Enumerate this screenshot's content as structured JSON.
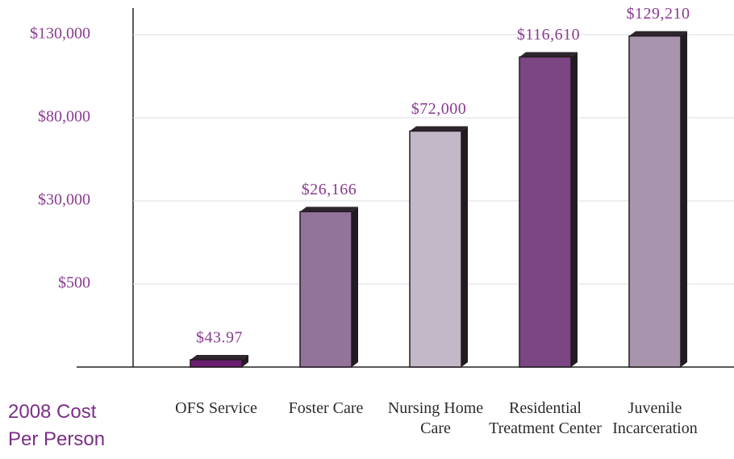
{
  "chart_data": {
    "type": "bar",
    "axis_label": "2008 Cost Per Person",
    "categories": [
      "OFS Service",
      "Foster Care",
      "Nursing Home Care",
      "Residential Treatment Center",
      "Juvenile Incarceration"
    ],
    "values": [
      43.97,
      26166,
      72000,
      116610,
      129210
    ],
    "value_labels": [
      "$43.97",
      "$26,166",
      "$72,000",
      "$116,610",
      "$129,210"
    ],
    "colors": [
      "#6b1d70",
      "#94739b",
      "#c3b8c7",
      "#7b4683",
      "#a895ad"
    ],
    "ylim": [
      0,
      130000
    ],
    "yticks": [
      {
        "value": 500,
        "label": "$500"
      },
      {
        "value": 30000,
        "label": "$30,000"
      },
      {
        "value": 80000,
        "label": "$80,000"
      },
      {
        "value": 130000,
        "label": "$130,000"
      }
    ],
    "grid": true
  }
}
